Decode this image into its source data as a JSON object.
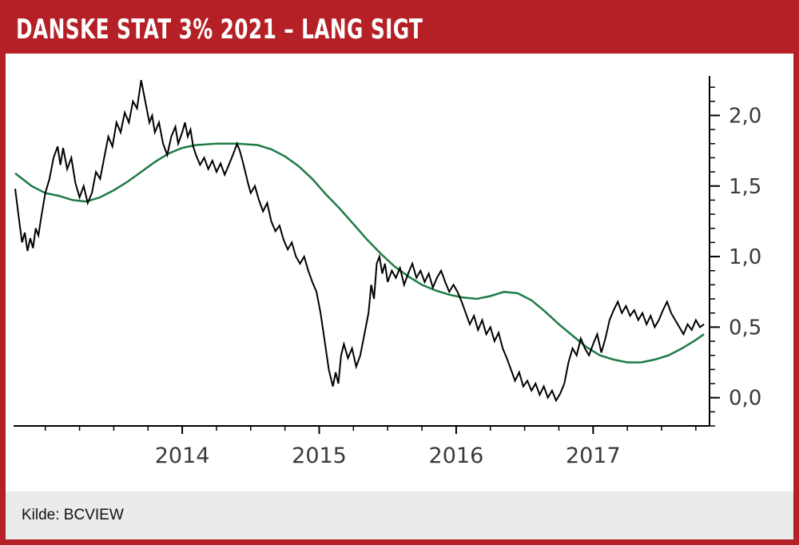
{
  "header": {
    "title": "DANSKE STAT 3% 2021 – LANG SIGT"
  },
  "footer": {
    "source": "Kilde: BCVIEW"
  },
  "colors": {
    "frame_red": "#b42025",
    "price_line": "#000000",
    "moving_average_line": "#1e7b45",
    "axis": "#000000",
    "tick_label": "#3a3a3a",
    "footer_bg": "#ebebeb"
  },
  "chart_data": {
    "type": "line",
    "title": "DANSKE STAT 3% 2021 – LANG SIGT",
    "xlabel": "",
    "ylabel": "",
    "xlim": [
      2012.78,
      2017.85
    ],
    "ylim": [
      -0.2,
      2.28
    ],
    "x_ticks": [
      2014,
      2015,
      2016,
      2017
    ],
    "x_tick_labels": [
      "2014",
      "2015",
      "2016",
      "2017"
    ],
    "x_minor_step": 0.25,
    "y_ticks": [
      0.0,
      0.5,
      1.0,
      1.5,
      2.0
    ],
    "y_tick_labels": [
      "0,0",
      "0,5",
      "1,0",
      "1,5",
      "2,0"
    ],
    "y_minor_step": 0.1,
    "grid": false,
    "legend": "none",
    "y_axis_side": "right",
    "series": [
      {
        "name": "price-line",
        "color": "#000000",
        "width": 2,
        "x": [
          2012.78,
          2012.81,
          2012.83,
          2012.85,
          2012.87,
          2012.89,
          2012.91,
          2012.93,
          2012.95,
          2012.97,
          2013.0,
          2013.03,
          2013.06,
          2013.09,
          2013.11,
          2013.13,
          2013.16,
          2013.19,
          2013.22,
          2013.25,
          2013.28,
          2013.31,
          2013.34,
          2013.37,
          2013.4,
          2013.43,
          2013.46,
          2013.49,
          2013.52,
          2013.55,
          2013.58,
          2013.61,
          2013.64,
          2013.67,
          2013.7,
          2013.72,
          2013.74,
          2013.76,
          2013.78,
          2013.8,
          2013.83,
          2013.86,
          2013.89,
          2013.92,
          2013.95,
          2013.97,
          2014.0,
          2014.02,
          2014.04,
          2014.06,
          2014.08,
          2014.1,
          2014.13,
          2014.16,
          2014.19,
          2014.22,
          2014.25,
          2014.28,
          2014.31,
          2014.34,
          2014.37,
          2014.4,
          2014.42,
          2014.44,
          2014.46,
          2014.48,
          2014.5,
          2014.53,
          2014.56,
          2014.59,
          2014.62,
          2014.65,
          2014.68,
          2014.71,
          2014.74,
          2014.77,
          2014.8,
          2014.83,
          2014.86,
          2014.89,
          2014.92,
          2014.95,
          2014.98,
          2015.01,
          2015.04,
          2015.07,
          2015.1,
          2015.12,
          2015.14,
          2015.16,
          2015.18,
          2015.21,
          2015.24,
          2015.27,
          2015.3,
          2015.33,
          2015.36,
          2015.38,
          2015.4,
          2015.42,
          2015.44,
          2015.46,
          2015.48,
          2015.5,
          2015.53,
          2015.56,
          2015.59,
          2015.62,
          2015.65,
          2015.68,
          2015.71,
          2015.74,
          2015.77,
          2015.8,
          2015.83,
          2015.86,
          2015.89,
          2015.92,
          2015.95,
          2015.98,
          2016.01,
          2016.04,
          2016.07,
          2016.1,
          2016.13,
          2016.16,
          2016.19,
          2016.22,
          2016.25,
          2016.28,
          2016.31,
          2016.34,
          2016.37,
          2016.4,
          2016.43,
          2016.46,
          2016.49,
          2016.52,
          2016.55,
          2016.58,
          2016.61,
          2016.64,
          2016.67,
          2016.7,
          2016.73,
          2016.76,
          2016.79,
          2016.82,
          2016.85,
          2016.88,
          2016.91,
          2016.94,
          2016.97,
          2017.0,
          2017.03,
          2017.06,
          2017.09,
          2017.12,
          2017.15,
          2017.18,
          2017.21,
          2017.24,
          2017.27,
          2017.3,
          2017.33,
          2017.36,
          2017.39,
          2017.42,
          2017.45,
          2017.48,
          2017.51,
          2017.54,
          2017.57,
          2017.6,
          2017.63,
          2017.66,
          2017.69,
          2017.72,
          2017.75,
          2017.78,
          2017.81
        ],
        "y": [
          1.48,
          1.25,
          1.1,
          1.17,
          1.04,
          1.13,
          1.06,
          1.2,
          1.15,
          1.28,
          1.45,
          1.55,
          1.7,
          1.78,
          1.65,
          1.77,
          1.62,
          1.7,
          1.52,
          1.42,
          1.5,
          1.38,
          1.45,
          1.6,
          1.55,
          1.7,
          1.85,
          1.78,
          1.95,
          1.88,
          2.02,
          1.95,
          2.1,
          2.05,
          2.25,
          2.15,
          2.05,
          1.95,
          2.0,
          1.88,
          1.95,
          1.8,
          1.72,
          1.85,
          1.92,
          1.8,
          1.88,
          1.95,
          1.85,
          1.9,
          1.78,
          1.72,
          1.65,
          1.7,
          1.62,
          1.68,
          1.6,
          1.66,
          1.58,
          1.65,
          1.72,
          1.8,
          1.75,
          1.68,
          1.6,
          1.52,
          1.45,
          1.5,
          1.4,
          1.32,
          1.38,
          1.25,
          1.18,
          1.22,
          1.12,
          1.05,
          1.1,
          1.0,
          0.95,
          1.0,
          0.9,
          0.82,
          0.75,
          0.6,
          0.4,
          0.2,
          0.08,
          0.18,
          0.1,
          0.3,
          0.38,
          0.28,
          0.35,
          0.22,
          0.3,
          0.45,
          0.6,
          0.8,
          0.7,
          0.95,
          1.0,
          0.88,
          0.95,
          0.82,
          0.9,
          0.85,
          0.92,
          0.8,
          0.88,
          0.95,
          0.85,
          0.9,
          0.82,
          0.88,
          0.78,
          0.85,
          0.9,
          0.82,
          0.75,
          0.8,
          0.75,
          0.68,
          0.6,
          0.52,
          0.58,
          0.48,
          0.55,
          0.45,
          0.5,
          0.4,
          0.46,
          0.35,
          0.28,
          0.2,
          0.12,
          0.18,
          0.08,
          0.12,
          0.05,
          0.1,
          0.02,
          0.08,
          0.0,
          0.05,
          -0.02,
          0.03,
          0.1,
          0.25,
          0.35,
          0.3,
          0.42,
          0.35,
          0.3,
          0.38,
          0.45,
          0.32,
          0.42,
          0.55,
          0.62,
          0.68,
          0.6,
          0.65,
          0.58,
          0.62,
          0.55,
          0.6,
          0.52,
          0.58,
          0.5,
          0.55,
          0.62,
          0.68,
          0.6,
          0.55,
          0.5,
          0.45,
          0.52,
          0.48,
          0.55,
          0.5,
          0.52
        ]
      },
      {
        "name": "moving-average-line",
        "color": "#1e7b45",
        "width": 2.5,
        "x": [
          2012.78,
          2012.9,
          2013.0,
          2013.1,
          2013.2,
          2013.3,
          2013.4,
          2013.5,
          2013.6,
          2013.7,
          2013.8,
          2013.9,
          2014.0,
          2014.1,
          2014.25,
          2014.4,
          2014.55,
          2014.65,
          2014.75,
          2014.85,
          2014.95,
          2015.05,
          2015.15,
          2015.25,
          2015.35,
          2015.45,
          2015.55,
          2015.65,
          2015.75,
          2015.85,
          2015.95,
          2016.05,
          2016.15,
          2016.25,
          2016.35,
          2016.45,
          2016.55,
          2016.65,
          2016.75,
          2016.85,
          2016.95,
          2017.05,
          2017.15,
          2017.25,
          2017.35,
          2017.45,
          2017.55,
          2017.65,
          2017.75,
          2017.81
        ],
        "y": [
          1.59,
          1.5,
          1.45,
          1.43,
          1.4,
          1.39,
          1.42,
          1.47,
          1.53,
          1.6,
          1.67,
          1.73,
          1.77,
          1.79,
          1.8,
          1.8,
          1.79,
          1.76,
          1.71,
          1.64,
          1.55,
          1.44,
          1.34,
          1.23,
          1.12,
          1.02,
          0.93,
          0.86,
          0.8,
          0.76,
          0.73,
          0.71,
          0.7,
          0.72,
          0.75,
          0.74,
          0.69,
          0.61,
          0.52,
          0.44,
          0.36,
          0.3,
          0.27,
          0.25,
          0.25,
          0.27,
          0.3,
          0.35,
          0.41,
          0.45
        ]
      }
    ]
  }
}
